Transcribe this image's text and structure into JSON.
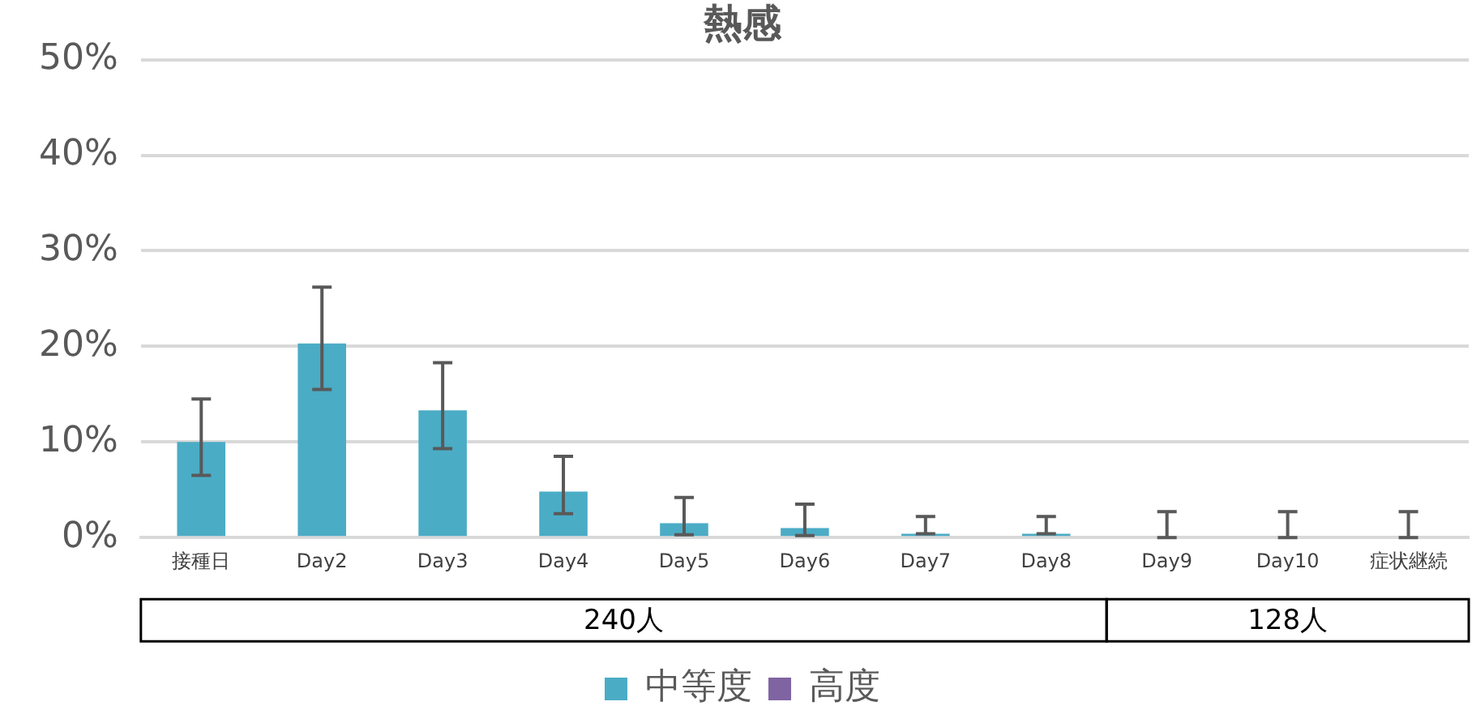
{
  "chart_data": {
    "type": "bar",
    "title": "熱感",
    "categories": [
      "接種日",
      "Day2",
      "Day3",
      "Day4",
      "Day5",
      "Day6",
      "Day7",
      "Day8",
      "Day9",
      "Day10",
      "症状継続"
    ],
    "series": [
      {
        "name": "中等度",
        "color": "#4bacc6",
        "values": [
          10,
          20.3,
          13.3,
          4.8,
          1.5,
          1,
          0.4,
          0.4,
          0,
          0,
          0
        ],
        "errors": [
          [
            6.5,
            14.5
          ],
          [
            15.5,
            26.2
          ],
          [
            9.3,
            18.3
          ],
          [
            2.5,
            8.5
          ],
          [
            0.3,
            4.2
          ],
          [
            0.2,
            3.5
          ],
          [
            0.4,
            2.2
          ],
          [
            0.4,
            2.2
          ],
          [
            0,
            2.7
          ],
          [
            0,
            2.7
          ],
          [
            0,
            2.7
          ]
        ]
      },
      {
        "name": "高度",
        "color": "#8064a2",
        "values": [
          0,
          0,
          0,
          0,
          0,
          0,
          0,
          0,
          0,
          0,
          0
        ]
      }
    ],
    "ylim": [
      0,
      50
    ],
    "yticks": [
      {
        "value": 0,
        "label": "0%"
      },
      {
        "value": 10,
        "label": "10%"
      },
      {
        "value": 20,
        "label": "20%"
      },
      {
        "value": 30,
        "label": "30%"
      },
      {
        "value": 40,
        "label": "40%"
      },
      {
        "value": 50,
        "label": "50%"
      }
    ],
    "grid": "y",
    "legend": "bottom",
    "annotations": [
      "240人",
      "128人"
    ]
  }
}
